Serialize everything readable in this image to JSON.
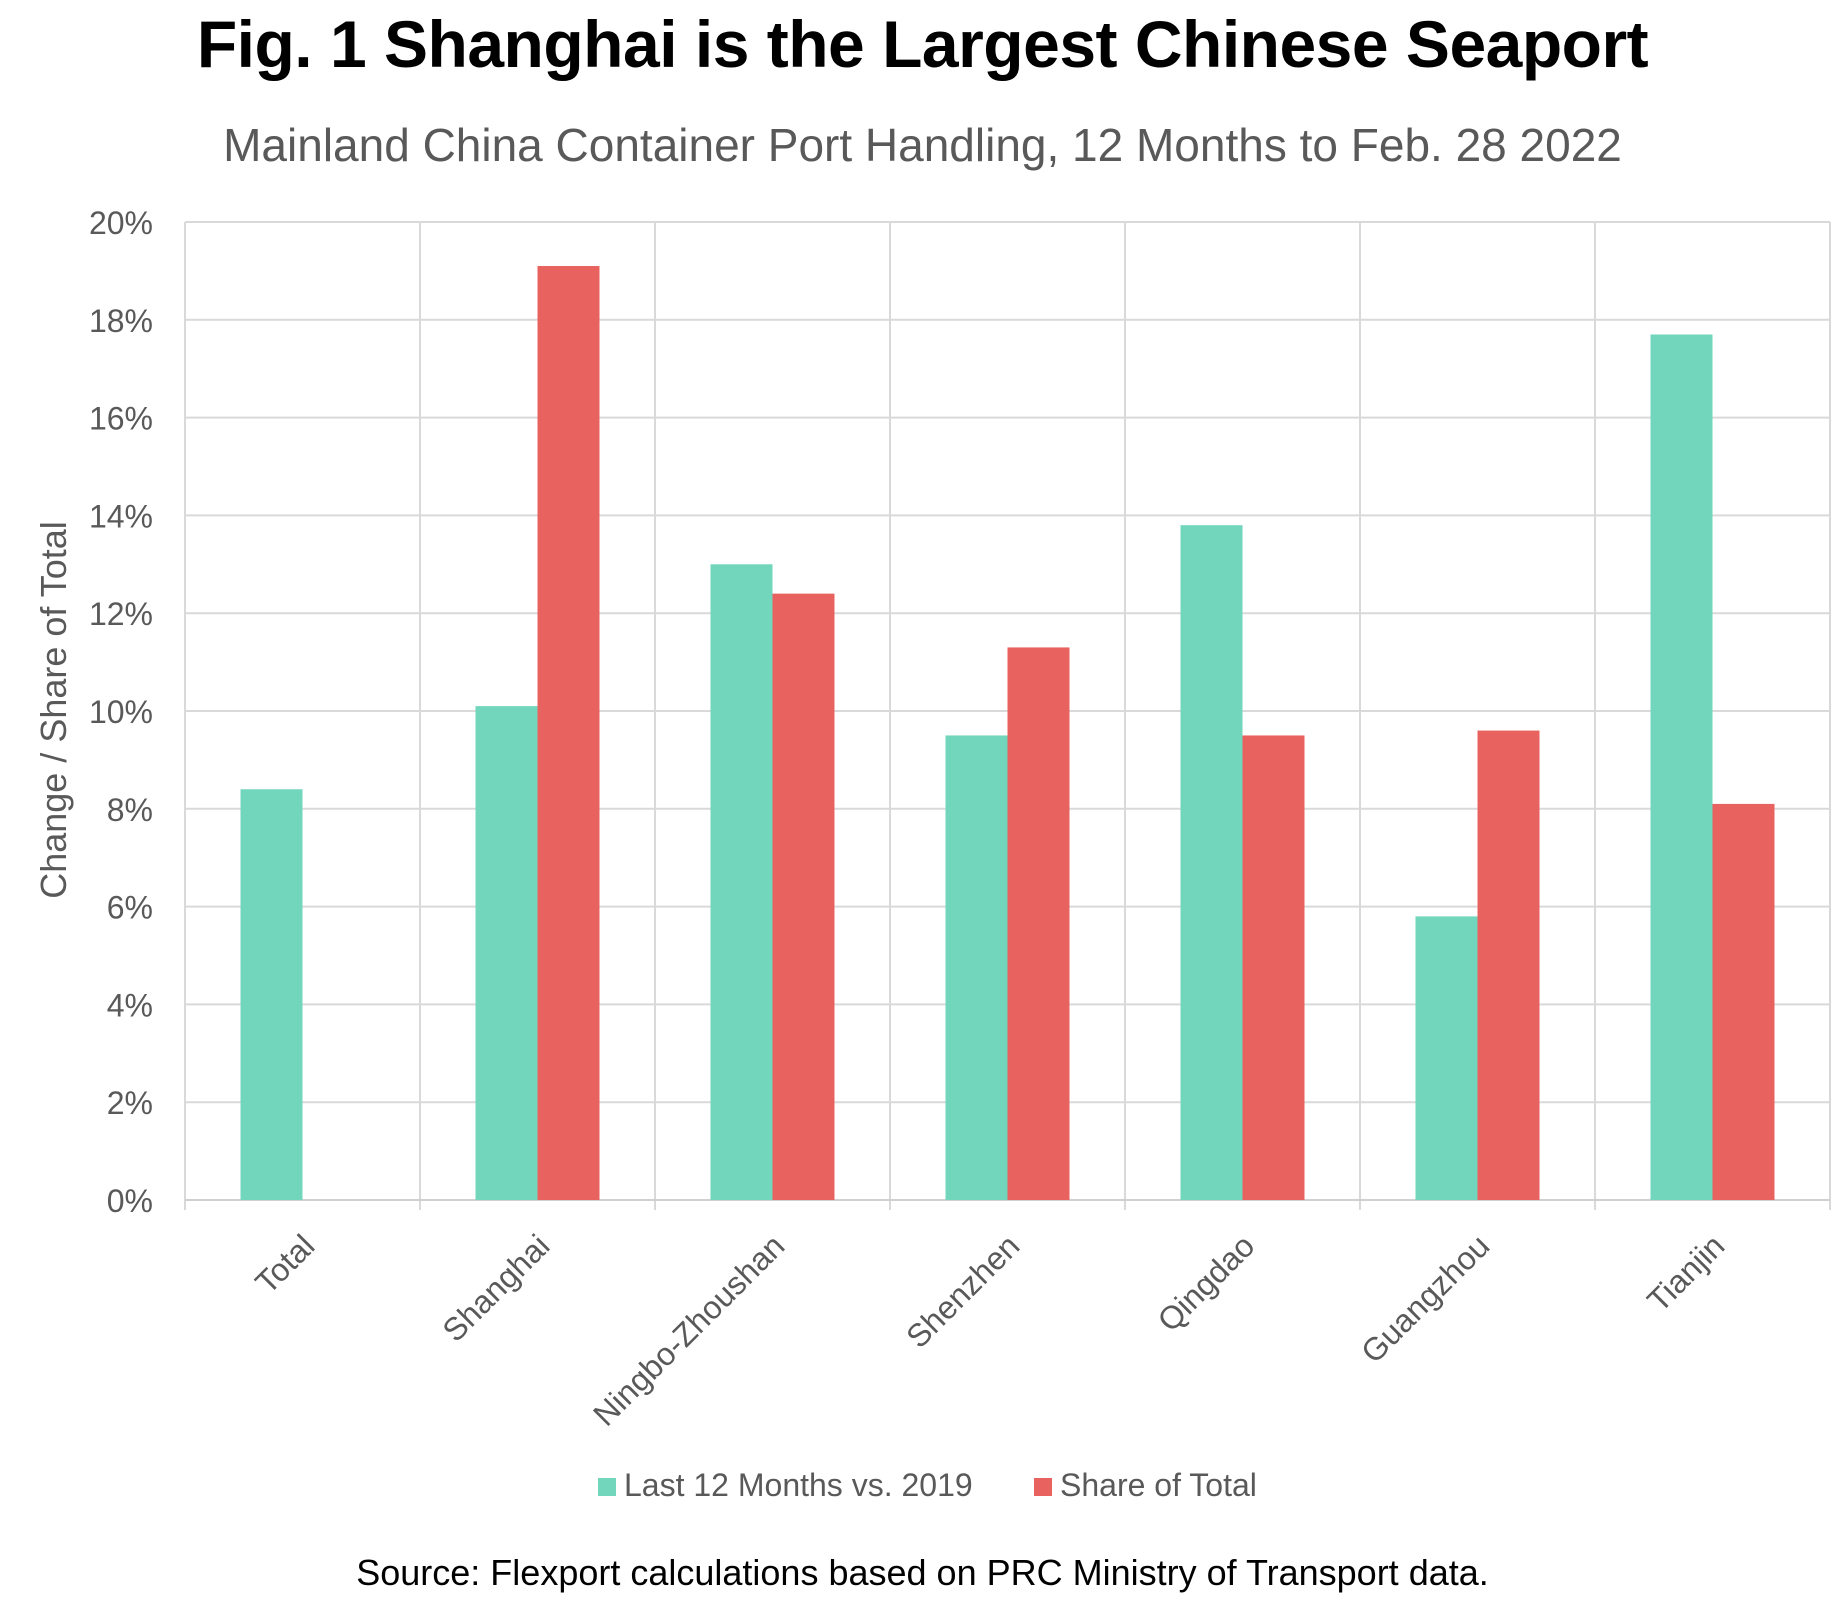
{
  "title": "Fig. 1 Shanghai is the Largest Chinese Seaport",
  "subtitle": "Mainland China Container Port Handling, 12 Months to Feb. 28 2022",
  "source": "Source: Flexport calculations based on PRC Ministry of Transport data.",
  "colors": {
    "last12": "#72d6bd",
    "share": "#e8635f",
    "grid": "#d9d9d9",
    "axis_text": "#595959"
  },
  "chart_data": {
    "type": "bar",
    "title": "Fig. 1 Shanghai is the Largest Chinese Seaport",
    "subtitle": "Mainland China Container Port Handling, 12 Months to Feb. 28 2022",
    "ylabel": "Change / Share of Total",
    "xlabel": "",
    "ylim": [
      0,
      20
    ],
    "yticks": [
      "0%",
      "2%",
      "4%",
      "6%",
      "8%",
      "10%",
      "12%",
      "14%",
      "16%",
      "18%",
      "20%"
    ],
    "grid": true,
    "legend_position": "bottom",
    "categories": [
      "Total",
      "Shanghai",
      "Ningbo-Zhoushan",
      "Shenzhen",
      "Qingdao",
      "Guangzhou",
      "Tianjin"
    ],
    "series": [
      {
        "name": "Last 12  Months vs. 2019",
        "color": "#72d6bd",
        "values": [
          8.4,
          10.1,
          13.0,
          9.5,
          13.8,
          5.8,
          17.7
        ]
      },
      {
        "name": "Share of Total",
        "color": "#e8635f",
        "values": [
          null,
          19.1,
          12.4,
          11.3,
          9.5,
          9.6,
          8.1
        ]
      }
    ]
  }
}
